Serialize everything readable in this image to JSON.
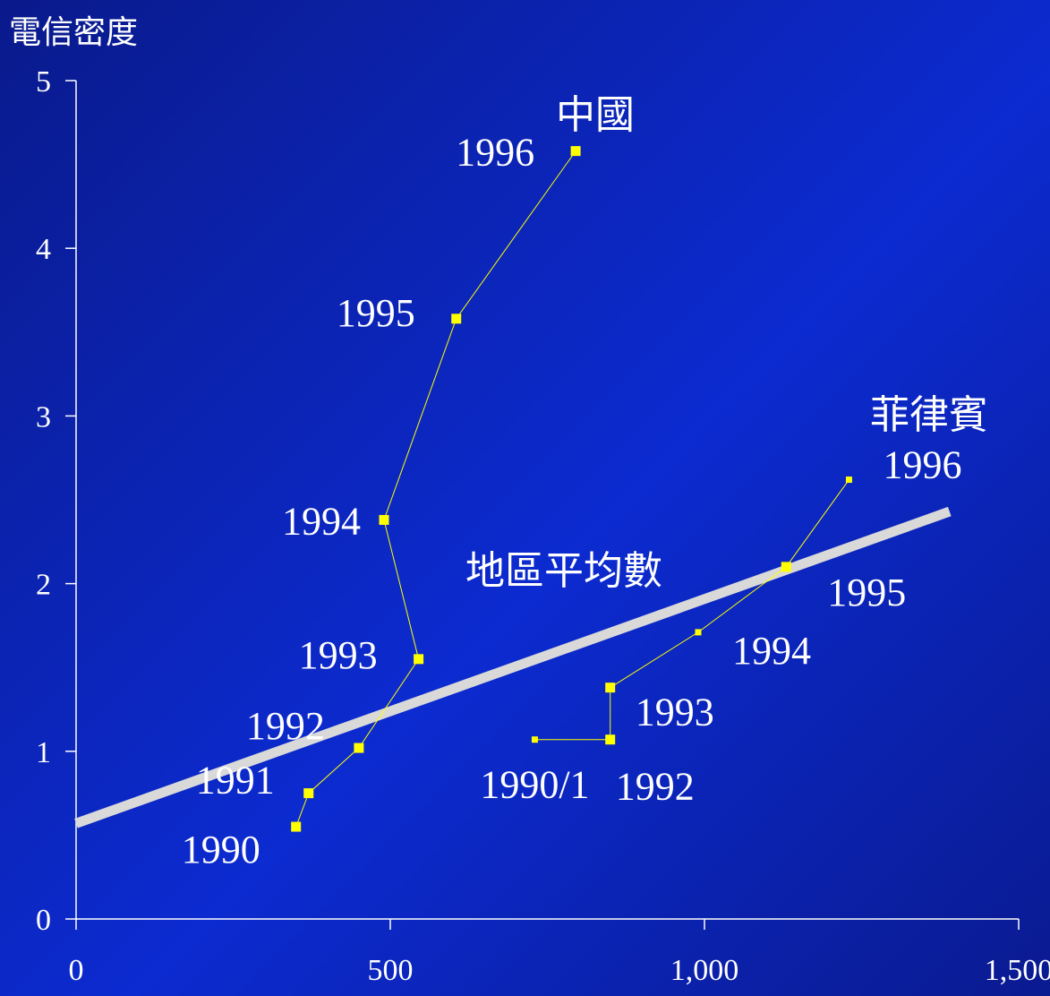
{
  "chart_data": {
    "type": "line",
    "ylabel": "電信密度",
    "xlim": [
      0,
      1500
    ],
    "ylim": [
      0,
      5
    ],
    "x_ticks": [
      0,
      500,
      1000,
      1500
    ],
    "x_tick_labels": [
      "0",
      "500",
      "1,000",
      "1,500"
    ],
    "y_ticks": [
      0,
      1,
      2,
      3,
      4,
      5
    ],
    "y_tick_labels": [
      "0",
      "1",
      "2",
      "3",
      "4",
      "5"
    ],
    "grid": false,
    "series": [
      {
        "name": "中國",
        "color": "#ffff00",
        "points": [
          {
            "x": 350,
            "y": 0.55,
            "label": "1990"
          },
          {
            "x": 370,
            "y": 0.75,
            "label": "1991"
          },
          {
            "x": 450,
            "y": 1.02,
            "label": "1992"
          },
          {
            "x": 545,
            "y": 1.55,
            "label": "1993"
          },
          {
            "x": 490,
            "y": 2.38,
            "label": "1994"
          },
          {
            "x": 605,
            "y": 3.58,
            "label": "1995"
          },
          {
            "x": 795,
            "y": 4.58,
            "label": "1996"
          }
        ]
      },
      {
        "name": "菲律賓",
        "color": "#ffff00",
        "points": [
          {
            "x": 730,
            "y": 1.07,
            "label": "1990/1"
          },
          {
            "x": 850,
            "y": 1.07,
            "label": "1992"
          },
          {
            "x": 850,
            "y": 1.38,
            "label": "1993"
          },
          {
            "x": 990,
            "y": 1.71,
            "label": "1994"
          },
          {
            "x": 1130,
            "y": 2.1,
            "label": "1995"
          },
          {
            "x": 1230,
            "y": 2.62,
            "label": "1996"
          }
        ]
      },
      {
        "name": "地區平均數",
        "color": "#d9d9d9",
        "type": "trendline",
        "points": [
          {
            "x": 0,
            "y": 0.57
          },
          {
            "x": 1390,
            "y": 2.43
          }
        ]
      }
    ]
  }
}
